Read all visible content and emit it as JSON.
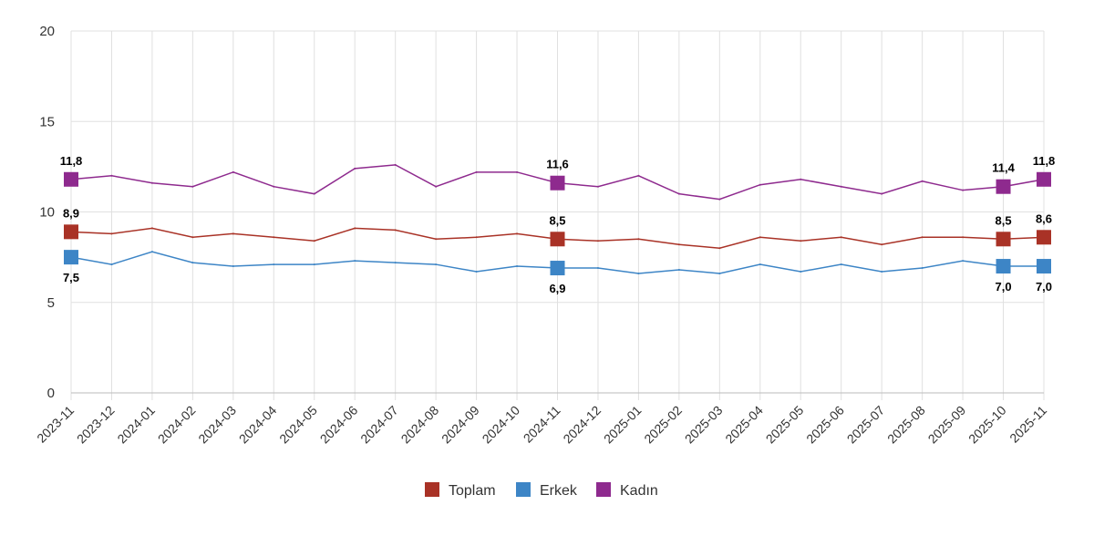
{
  "chart_data": {
    "type": "line",
    "title": "",
    "xlabel": "",
    "ylabel": "",
    "ylim": [
      0,
      20
    ],
    "yticks": [
      0,
      5,
      10,
      15,
      20
    ],
    "grid": true,
    "legend_position": "bottom",
    "x": [
      "2023-11",
      "2023-12",
      "2024-01",
      "2024-02",
      "2024-03",
      "2024-04",
      "2024-05",
      "2024-06",
      "2024-07",
      "2024-08",
      "2024-09",
      "2024-10",
      "2024-11",
      "2024-12",
      "2025-01",
      "2025-02",
      "2025-03",
      "2025-04",
      "2025-05",
      "2025-06",
      "2025-07",
      "2025-08",
      "2025-09",
      "2025-10",
      "2025-11"
    ],
    "series": [
      {
        "name": "Toplam",
        "color": "#a93226",
        "label_position": "above",
        "values": [
          8.9,
          8.8,
          9.1,
          8.6,
          8.8,
          8.6,
          8.4,
          9.1,
          9.0,
          8.5,
          8.6,
          8.8,
          8.5,
          8.4,
          8.5,
          8.2,
          8.0,
          8.6,
          8.4,
          8.6,
          8.2,
          8.6,
          8.6,
          8.5,
          8.6
        ]
      },
      {
        "name": "Erkek",
        "color": "#3d85c6",
        "label_position": "below",
        "values": [
          7.5,
          7.1,
          7.8,
          7.2,
          7.0,
          7.1,
          7.1,
          7.3,
          7.2,
          7.1,
          6.7,
          7.0,
          6.9,
          6.9,
          6.6,
          6.8,
          6.6,
          7.1,
          6.7,
          7.1,
          6.7,
          6.9,
          7.3,
          7.0,
          7.0
        ]
      },
      {
        "name": "Kadın",
        "color": "#8e2a8e",
        "label_position": "above",
        "values": [
          11.8,
          12.0,
          11.6,
          11.4,
          12.2,
          11.4,
          11.0,
          12.4,
          12.6,
          11.4,
          12.2,
          12.2,
          11.6,
          11.4,
          12.0,
          11.0,
          10.7,
          11.5,
          11.8,
          11.4,
          11.0,
          11.7,
          11.2,
          11.4,
          11.8
        ]
      }
    ],
    "highlighted_points": [
      0,
      12,
      23,
      24
    ],
    "data_labels": {
      "Toplam": [
        "8,9",
        "8,5",
        "8,5",
        "8,6"
      ],
      "Erkek": [
        "7,5",
        "6,9",
        "7,0",
        "7,0"
      ],
      "Kadın": [
        "11,8",
        "11,6",
        "11,4",
        "11,8"
      ]
    }
  }
}
